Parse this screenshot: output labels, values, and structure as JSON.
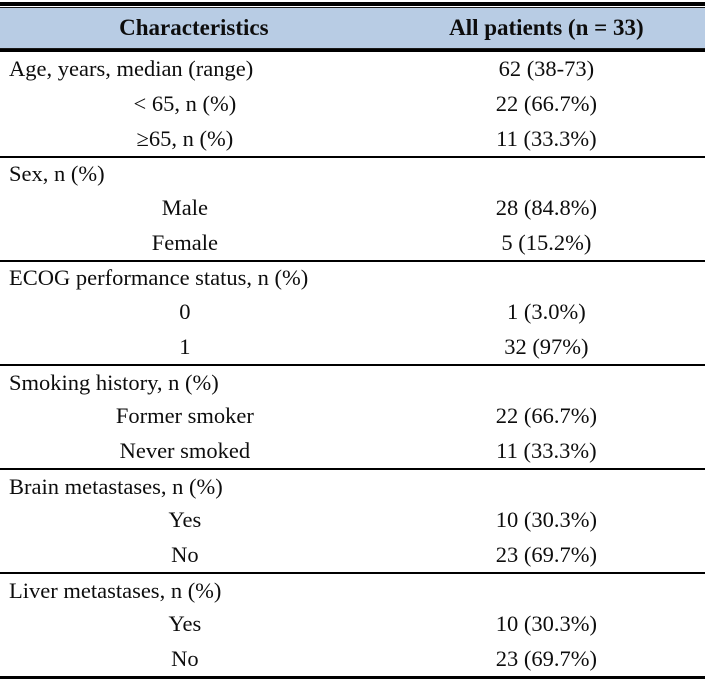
{
  "table": {
    "header": {
      "col1": "Characteristics",
      "col2": "All patients (n = 33)"
    },
    "rows": [
      {
        "label": "Age, years, median (range)",
        "value": "62 (38-73)"
      },
      {
        "label": "< 65, n (%)",
        "value": "22 (66.7%)"
      },
      {
        "label": "≥65, n (%)",
        "value": "11 (33.3%)"
      },
      {
        "label": "Sex, n (%)",
        "value": ""
      },
      {
        "label": "Male",
        "value": "28 (84.8%)"
      },
      {
        "label": "Female",
        "value": "5 (15.2%)"
      },
      {
        "label": "ECOG performance status, n (%)",
        "value": ""
      },
      {
        "label": "0",
        "value": "1 (3.0%)"
      },
      {
        "label": "1",
        "value": "32 (97%)"
      },
      {
        "label": "Smoking history, n (%)",
        "value": ""
      },
      {
        "label": "Former smoker",
        "value": "22 (66.7%)"
      },
      {
        "label": "Never smoked",
        "value": "11 (33.3%)"
      },
      {
        "label": "Brain metastases, n (%)",
        "value": ""
      },
      {
        "label": "Yes",
        "value": "10 (30.3%)"
      },
      {
        "label": "No",
        "value": "23 (69.7%)"
      },
      {
        "label": "Liver metastases, n (%)",
        "value": ""
      },
      {
        "label": "Yes",
        "value": "10 (30.3%)"
      },
      {
        "label": "No",
        "value": "23 (69.7%)"
      }
    ],
    "colors": {
      "header_bg": "#b8cce4",
      "rule": "#000000",
      "text": "#0d0d0d"
    }
  }
}
